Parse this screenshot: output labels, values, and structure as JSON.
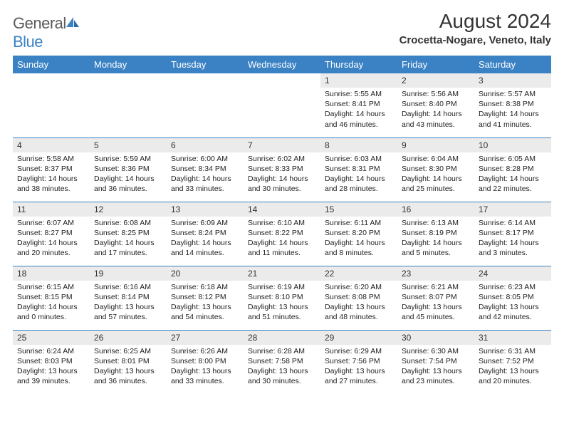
{
  "logo": {
    "part1": "General",
    "part2": "Blue"
  },
  "title": "August 2024",
  "location": "Crocetta-Nogare, Veneto, Italy",
  "colors": {
    "header_bg": "#3b82c4",
    "header_text": "#ffffff",
    "daynum_bg": "#ebebeb",
    "row_divider": "#3b82c4",
    "logo_gray": "#5a5a5a",
    "logo_blue": "#3b82c4"
  },
  "fonts": {
    "title_size": 28,
    "location_size": 15,
    "th_size": 13,
    "daynum_size": 12,
    "body_size": 10.5
  },
  "weekdays": [
    "Sunday",
    "Monday",
    "Tuesday",
    "Wednesday",
    "Thursday",
    "Friday",
    "Saturday"
  ],
  "weeks": [
    [
      null,
      null,
      null,
      null,
      {
        "n": "1",
        "sr": "5:55 AM",
        "ss": "8:41 PM",
        "dl": "14 hours and 46 minutes."
      },
      {
        "n": "2",
        "sr": "5:56 AM",
        "ss": "8:40 PM",
        "dl": "14 hours and 43 minutes."
      },
      {
        "n": "3",
        "sr": "5:57 AM",
        "ss": "8:38 PM",
        "dl": "14 hours and 41 minutes."
      }
    ],
    [
      {
        "n": "4",
        "sr": "5:58 AM",
        "ss": "8:37 PM",
        "dl": "14 hours and 38 minutes."
      },
      {
        "n": "5",
        "sr": "5:59 AM",
        "ss": "8:36 PM",
        "dl": "14 hours and 36 minutes."
      },
      {
        "n": "6",
        "sr": "6:00 AM",
        "ss": "8:34 PM",
        "dl": "14 hours and 33 minutes."
      },
      {
        "n": "7",
        "sr": "6:02 AM",
        "ss": "8:33 PM",
        "dl": "14 hours and 30 minutes."
      },
      {
        "n": "8",
        "sr": "6:03 AM",
        "ss": "8:31 PM",
        "dl": "14 hours and 28 minutes."
      },
      {
        "n": "9",
        "sr": "6:04 AM",
        "ss": "8:30 PM",
        "dl": "14 hours and 25 minutes."
      },
      {
        "n": "10",
        "sr": "6:05 AM",
        "ss": "8:28 PM",
        "dl": "14 hours and 22 minutes."
      }
    ],
    [
      {
        "n": "11",
        "sr": "6:07 AM",
        "ss": "8:27 PM",
        "dl": "14 hours and 20 minutes."
      },
      {
        "n": "12",
        "sr": "6:08 AM",
        "ss": "8:25 PM",
        "dl": "14 hours and 17 minutes."
      },
      {
        "n": "13",
        "sr": "6:09 AM",
        "ss": "8:24 PM",
        "dl": "14 hours and 14 minutes."
      },
      {
        "n": "14",
        "sr": "6:10 AM",
        "ss": "8:22 PM",
        "dl": "14 hours and 11 minutes."
      },
      {
        "n": "15",
        "sr": "6:11 AM",
        "ss": "8:20 PM",
        "dl": "14 hours and 8 minutes."
      },
      {
        "n": "16",
        "sr": "6:13 AM",
        "ss": "8:19 PM",
        "dl": "14 hours and 5 minutes."
      },
      {
        "n": "17",
        "sr": "6:14 AM",
        "ss": "8:17 PM",
        "dl": "14 hours and 3 minutes."
      }
    ],
    [
      {
        "n": "18",
        "sr": "6:15 AM",
        "ss": "8:15 PM",
        "dl": "14 hours and 0 minutes."
      },
      {
        "n": "19",
        "sr": "6:16 AM",
        "ss": "8:14 PM",
        "dl": "13 hours and 57 minutes."
      },
      {
        "n": "20",
        "sr": "6:18 AM",
        "ss": "8:12 PM",
        "dl": "13 hours and 54 minutes."
      },
      {
        "n": "21",
        "sr": "6:19 AM",
        "ss": "8:10 PM",
        "dl": "13 hours and 51 minutes."
      },
      {
        "n": "22",
        "sr": "6:20 AM",
        "ss": "8:08 PM",
        "dl": "13 hours and 48 minutes."
      },
      {
        "n": "23",
        "sr": "6:21 AM",
        "ss": "8:07 PM",
        "dl": "13 hours and 45 minutes."
      },
      {
        "n": "24",
        "sr": "6:23 AM",
        "ss": "8:05 PM",
        "dl": "13 hours and 42 minutes."
      }
    ],
    [
      {
        "n": "25",
        "sr": "6:24 AM",
        "ss": "8:03 PM",
        "dl": "13 hours and 39 minutes."
      },
      {
        "n": "26",
        "sr": "6:25 AM",
        "ss": "8:01 PM",
        "dl": "13 hours and 36 minutes."
      },
      {
        "n": "27",
        "sr": "6:26 AM",
        "ss": "8:00 PM",
        "dl": "13 hours and 33 minutes."
      },
      {
        "n": "28",
        "sr": "6:28 AM",
        "ss": "7:58 PM",
        "dl": "13 hours and 30 minutes."
      },
      {
        "n": "29",
        "sr": "6:29 AM",
        "ss": "7:56 PM",
        "dl": "13 hours and 27 minutes."
      },
      {
        "n": "30",
        "sr": "6:30 AM",
        "ss": "7:54 PM",
        "dl": "13 hours and 23 minutes."
      },
      {
        "n": "31",
        "sr": "6:31 AM",
        "ss": "7:52 PM",
        "dl": "13 hours and 20 minutes."
      }
    ]
  ],
  "labels": {
    "sunrise": "Sunrise:",
    "sunset": "Sunset:",
    "daylight": "Daylight:"
  }
}
